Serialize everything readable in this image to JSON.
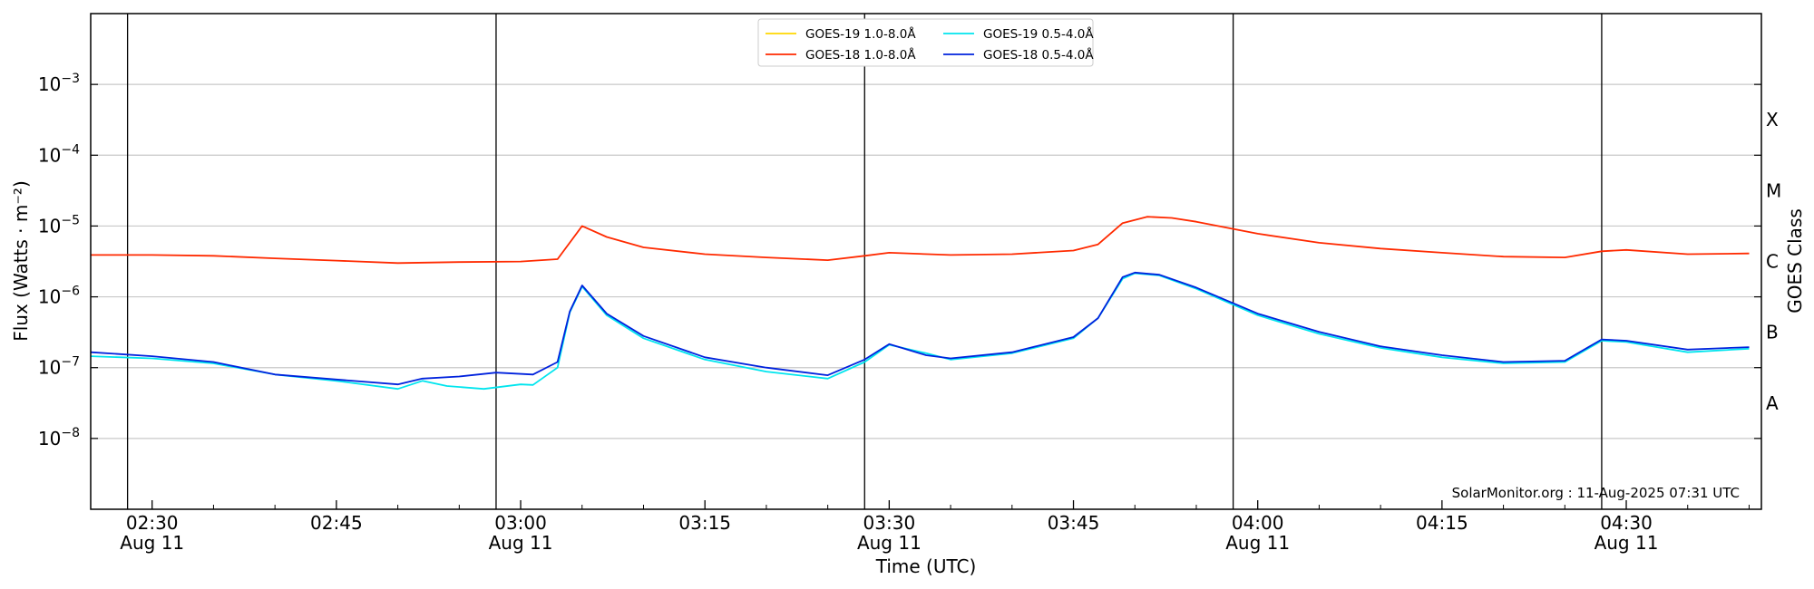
{
  "chart_data": {
    "type": "line",
    "title": "",
    "xlabel": "Time (UTC)",
    "ylabel": "Flux (Watts · m⁻²)",
    "ylabel_right": "GOES Class",
    "y_scale": "log",
    "ylim": [
      1e-09,
      0.01
    ],
    "y_ticks": [
      {
        "value": 1e-08,
        "base": "10",
        "exp": "−8"
      },
      {
        "value": 1e-07,
        "base": "10",
        "exp": "−7"
      },
      {
        "value": 1e-06,
        "base": "10",
        "exp": "−6"
      },
      {
        "value": 1e-05,
        "base": "10",
        "exp": "−5"
      },
      {
        "value": 0.0001,
        "base": "10",
        "exp": "−4"
      },
      {
        "value": 0.001,
        "base": "10",
        "exp": "−3"
      }
    ],
    "goes_classes": [
      {
        "label": "A",
        "value": 3.16e-08
      },
      {
        "label": "B",
        "value": 3.16e-07
      },
      {
        "label": "C",
        "value": 3.16e-06
      },
      {
        "label": "M",
        "value": 3.16e-05
      },
      {
        "label": "X",
        "value": 0.000316
      }
    ],
    "xlim": [
      "02:25",
      "04:41"
    ],
    "x_ticks": [
      {
        "time": "02:30",
        "label": "02:30",
        "date": "Aug 11"
      },
      {
        "time": "02:45",
        "label": "02:45",
        "date": ""
      },
      {
        "time": "03:00",
        "label": "03:00",
        "date": "Aug 11"
      },
      {
        "time": "03:15",
        "label": "03:15",
        "date": ""
      },
      {
        "time": "03:30",
        "label": "03:30",
        "date": "Aug 11"
      },
      {
        "time": "03:45",
        "label": "03:45",
        "date": ""
      },
      {
        "time": "04:00",
        "label": "04:00",
        "date": "Aug 11"
      },
      {
        "time": "04:15",
        "label": "04:15",
        "date": ""
      },
      {
        "time": "04:30",
        "label": "04:30",
        "date": "Aug 11"
      }
    ],
    "vertical_lines": [
      "02:28",
      "02:58",
      "03:28",
      "03:58",
      "04:28"
    ],
    "grid": "horizontal",
    "legend_position": "top-center",
    "credit": "SolarMonitor.org : 11-Aug-2025 07:31 UTC",
    "series": [
      {
        "name": "GOES-19 1.0-8.0Å",
        "color": "#ffd700",
        "points": []
      },
      {
        "name": "GOES-18 1.0-8.0Å",
        "color": "#ff2a00",
        "points": [
          [
            "02:25",
            3.9e-06
          ],
          [
            "02:30",
            3.9e-06
          ],
          [
            "02:35",
            3.8e-06
          ],
          [
            "02:40",
            3.5e-06
          ],
          [
            "02:45",
            3.25e-06
          ],
          [
            "02:50",
            3e-06
          ],
          [
            "02:55",
            3.1e-06
          ],
          [
            "03:00",
            3.15e-06
          ],
          [
            "03:03",
            3.4e-06
          ],
          [
            "03:05",
            1e-05
          ],
          [
            "03:07",
            7e-06
          ],
          [
            "03:10",
            5e-06
          ],
          [
            "03:15",
            4e-06
          ],
          [
            "03:20",
            3.6e-06
          ],
          [
            "03:25",
            3.3e-06
          ],
          [
            "03:28",
            3.8e-06
          ],
          [
            "03:30",
            4.2e-06
          ],
          [
            "03:35",
            3.9e-06
          ],
          [
            "03:40",
            4e-06
          ],
          [
            "03:45",
            4.5e-06
          ],
          [
            "03:47",
            5.5e-06
          ],
          [
            "03:49",
            1.1e-05
          ],
          [
            "03:51",
            1.35e-05
          ],
          [
            "03:53",
            1.3e-05
          ],
          [
            "03:55",
            1.15e-05
          ],
          [
            "04:00",
            7.8e-06
          ],
          [
            "04:05",
            5.8e-06
          ],
          [
            "04:10",
            4.8e-06
          ],
          [
            "04:15",
            4.2e-06
          ],
          [
            "04:20",
            3.7e-06
          ],
          [
            "04:25",
            3.6e-06
          ],
          [
            "04:28",
            4.4e-06
          ],
          [
            "04:30",
            4.6e-06
          ],
          [
            "04:35",
            4e-06
          ],
          [
            "04:40",
            4.1e-06
          ]
        ]
      },
      {
        "name": "GOES-19 0.5-4.0Å",
        "color": "#00e5ee",
        "points": [
          [
            "02:25",
            1.45e-07
          ],
          [
            "02:30",
            1.35e-07
          ],
          [
            "02:35",
            1.15e-07
          ],
          [
            "02:40",
            8e-08
          ],
          [
            "02:45",
            6.5e-08
          ],
          [
            "02:50",
            5e-08
          ],
          [
            "02:52",
            6.5e-08
          ],
          [
            "02:54",
            5.5e-08
          ],
          [
            "02:57",
            5e-08
          ],
          [
            "03:00",
            5.8e-08
          ],
          [
            "03:01",
            5.7e-08
          ],
          [
            "03:03",
            1e-07
          ],
          [
            "03:04",
            6e-07
          ],
          [
            "03:05",
            1.4e-06
          ],
          [
            "03:07",
            5.5e-07
          ],
          [
            "03:10",
            2.6e-07
          ],
          [
            "03:15",
            1.3e-07
          ],
          [
            "03:20",
            8.8e-08
          ],
          [
            "03:25",
            7e-08
          ],
          [
            "03:28",
            1.2e-07
          ],
          [
            "03:30",
            2.1e-07
          ],
          [
            "03:33",
            1.6e-07
          ],
          [
            "03:35",
            1.3e-07
          ],
          [
            "03:40",
            1.6e-07
          ],
          [
            "03:45",
            2.6e-07
          ],
          [
            "03:47",
            5e-07
          ],
          [
            "03:49",
            1.8e-06
          ],
          [
            "03:50",
            2.15e-06
          ],
          [
            "03:52",
            2e-06
          ],
          [
            "03:55",
            1.3e-06
          ],
          [
            "04:00",
            5.5e-07
          ],
          [
            "04:05",
            3e-07
          ],
          [
            "04:10",
            1.9e-07
          ],
          [
            "04:15",
            1.4e-07
          ],
          [
            "04:20",
            1.15e-07
          ],
          [
            "04:25",
            1.2e-07
          ],
          [
            "04:28",
            2.4e-07
          ],
          [
            "04:30",
            2.3e-07
          ],
          [
            "04:35",
            1.65e-07
          ],
          [
            "04:40",
            1.85e-07
          ]
        ]
      },
      {
        "name": "GOES-18 0.5-4.0Å",
        "color": "#0022dd",
        "points": [
          [
            "02:25",
            1.65e-07
          ],
          [
            "02:30",
            1.45e-07
          ],
          [
            "02:35",
            1.2e-07
          ],
          [
            "02:40",
            8e-08
          ],
          [
            "02:45",
            6.8e-08
          ],
          [
            "02:50",
            5.8e-08
          ],
          [
            "02:52",
            7e-08
          ],
          [
            "02:55",
            7.5e-08
          ],
          [
            "02:58",
            8.5e-08
          ],
          [
            "03:01",
            8e-08
          ],
          [
            "03:03",
            1.2e-07
          ],
          [
            "03:04",
            6.2e-07
          ],
          [
            "03:05",
            1.45e-06
          ],
          [
            "03:07",
            5.8e-07
          ],
          [
            "03:10",
            2.8e-07
          ],
          [
            "03:15",
            1.4e-07
          ],
          [
            "03:20",
            1e-07
          ],
          [
            "03:25",
            7.8e-08
          ],
          [
            "03:28",
            1.3e-07
          ],
          [
            "03:30",
            2.15e-07
          ],
          [
            "03:33",
            1.5e-07
          ],
          [
            "03:35",
            1.35e-07
          ],
          [
            "03:40",
            1.65e-07
          ],
          [
            "03:45",
            2.7e-07
          ],
          [
            "03:47",
            5e-07
          ],
          [
            "03:49",
            1.9e-06
          ],
          [
            "03:50",
            2.2e-06
          ],
          [
            "03:52",
            2.05e-06
          ],
          [
            "03:55",
            1.35e-06
          ],
          [
            "04:00",
            5.8e-07
          ],
          [
            "04:05",
            3.2e-07
          ],
          [
            "04:10",
            2e-07
          ],
          [
            "04:15",
            1.5e-07
          ],
          [
            "04:20",
            1.2e-07
          ],
          [
            "04:25",
            1.25e-07
          ],
          [
            "04:28",
            2.5e-07
          ],
          [
            "04:30",
            2.4e-07
          ],
          [
            "04:35",
            1.8e-07
          ],
          [
            "04:40",
            1.95e-07
          ]
        ]
      }
    ]
  }
}
